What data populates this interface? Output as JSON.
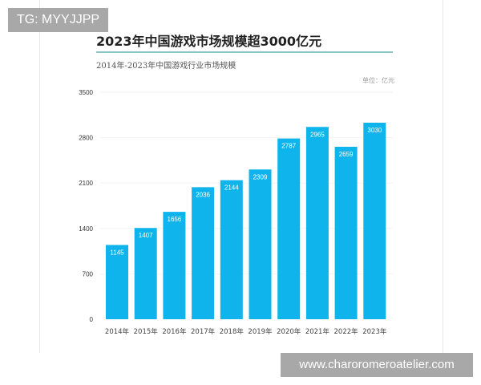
{
  "watermarks": {
    "top_left": "TG: MYYJJPP",
    "bottom_right": "www.charoromeroatelier.com"
  },
  "chart_data": {
    "type": "bar",
    "title": "2023年中国游戏市场规模超3000亿元",
    "subtitle": "2014年-2023年中国游戏行业市场规模",
    "unit": "单位：亿元",
    "categories": [
      "2014年",
      "2015年",
      "2016年",
      "2017年",
      "2018年",
      "2019年",
      "2020年",
      "2021年",
      "2022年",
      "2023年"
    ],
    "values": [
      1145,
      1407,
      1656,
      2036,
      2144,
      2309,
      2787,
      2965,
      2659,
      3030
    ],
    "yticks": [
      0,
      700,
      1400,
      2100,
      2800,
      3500
    ],
    "ylim": [
      0,
      3500
    ],
    "grid": true,
    "bar_color": "#0fb4ec",
    "data_labels": true
  }
}
